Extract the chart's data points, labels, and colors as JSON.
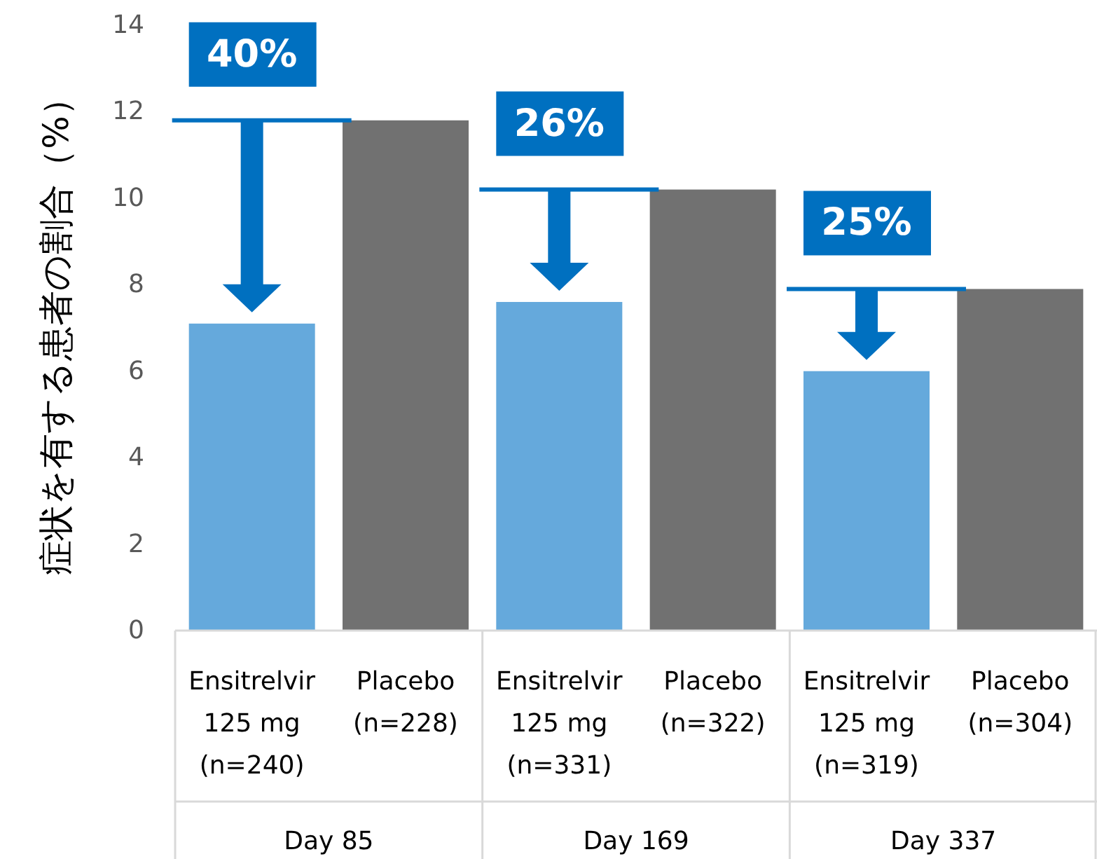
{
  "chart_data": {
    "type": "bar",
    "ylabel": "症状を有する患者の割合（%）",
    "categories": [
      "Ensitrelvir\n125 mg\n(n=240)",
      "Placebo\n(n=228)",
      "Ensitrelvir\n125 mg\n(n=331)",
      "Placebo\n(n=322)",
      "Ensitrelvir\n125 mg\n(n=319)",
      "Placebo\n(n=304)"
    ],
    "values": [
      7.1,
      11.8,
      7.6,
      10.2,
      6.0,
      7.9
    ],
    "colors": [
      "#65a9dc",
      "#717171",
      "#65a9dc",
      "#717171",
      "#65a9dc",
      "#717171"
    ],
    "ylim": [
      0,
      14
    ],
    "yticks": [
      0,
      2,
      4,
      6,
      8,
      10,
      12,
      14
    ],
    "grid": false,
    "annotations": [
      "Day 85",
      "Day 169",
      "Day 337",
      "40%",
      "26%",
      "25%"
    ]
  }
}
